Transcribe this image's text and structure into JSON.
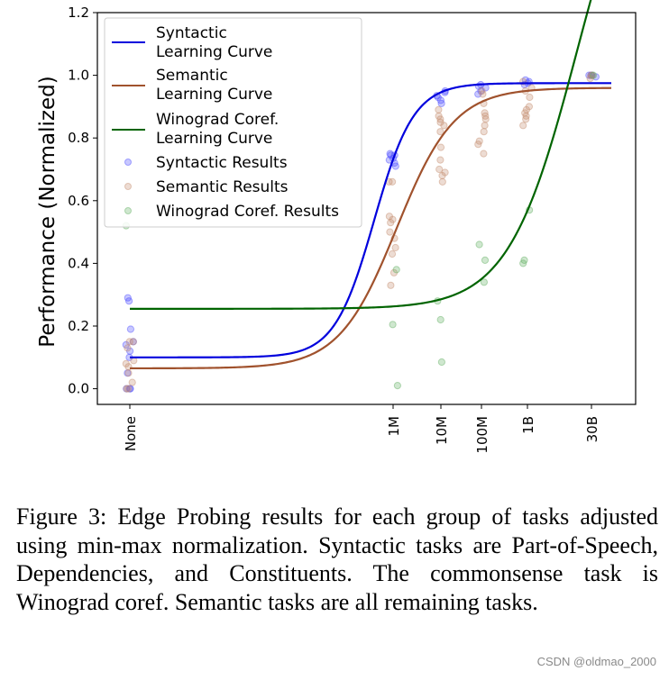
{
  "chart_data": {
    "type": "scatter",
    "ylabel": "Performance (Normalized)",
    "xlabel": "",
    "ylim": [
      -0.05,
      1.2
    ],
    "yticks": [
      0.0,
      0.2,
      0.4,
      0.6,
      0.8,
      1.0,
      1.2
    ],
    "categories": [
      "None",
      "1M",
      "10M",
      "100M",
      "1B",
      "30B"
    ],
    "legend_position": "top-left",
    "grid": false,
    "series": [
      {
        "name": "Syntactic Learning Curve",
        "kind": "line",
        "color": "#0000dd",
        "x": [
          "None",
          "1M",
          "10M",
          "100M",
          "1B",
          "30B"
        ],
        "y": [
          0.1,
          0.62,
          0.91,
          0.965,
          0.975,
          0.975
        ]
      },
      {
        "name": "Semantic Learning Curve",
        "kind": "line",
        "color": "#a0522d",
        "x": [
          "None",
          "1M",
          "10M",
          "100M",
          "1B",
          "30B"
        ],
        "y": [
          0.065,
          0.48,
          0.76,
          0.89,
          0.935,
          0.96
        ]
      },
      {
        "name": "Winograd Coref. Learning Curve",
        "kind": "line",
        "color": "#006400",
        "x": [
          "None",
          "1M",
          "10M",
          "100M",
          "1B",
          "30B"
        ],
        "y": [
          0.255,
          0.26,
          0.27,
          0.32,
          0.55,
          1.15
        ]
      },
      {
        "name": "Syntactic Results",
        "kind": "scatter",
        "color": "#4a4aff",
        "points": [
          [
            "None",
            0.0
          ],
          [
            "None",
            0.0
          ],
          [
            "None",
            0.0
          ],
          [
            "None",
            0.05
          ],
          [
            "None",
            0.1
          ],
          [
            "None",
            0.12
          ],
          [
            "None",
            0.14
          ],
          [
            "None",
            0.15
          ],
          [
            "None",
            0.19
          ],
          [
            "None",
            0.28
          ],
          [
            "None",
            0.29
          ],
          [
            "1M",
            0.71
          ],
          [
            "1M",
            0.72
          ],
          [
            "1M",
            0.73
          ],
          [
            "1M",
            0.735
          ],
          [
            "1M",
            0.745
          ],
          [
            "1M",
            0.745
          ],
          [
            "1M",
            0.75
          ],
          [
            "10M",
            0.91
          ],
          [
            "10M",
            0.92
          ],
          [
            "10M",
            0.93
          ],
          [
            "10M",
            0.935
          ],
          [
            "10M",
            0.945
          ],
          [
            "10M",
            0.95
          ],
          [
            "100M",
            0.94
          ],
          [
            "100M",
            0.95
          ],
          [
            "100M",
            0.96
          ],
          [
            "100M",
            0.965
          ],
          [
            "100M",
            0.97
          ],
          [
            "1B",
            0.975
          ],
          [
            "1B",
            0.98
          ],
          [
            "1B",
            0.985
          ],
          [
            "1B",
            0.97
          ],
          [
            "30B",
            0.995
          ],
          [
            "30B",
            1.0
          ],
          [
            "30B",
            1.0
          ],
          [
            "30B",
            1.0
          ]
        ]
      },
      {
        "name": "Semantic Results",
        "kind": "scatter",
        "color": "#c48c6c",
        "points": [
          [
            "None",
            0.0
          ],
          [
            "None",
            0.0
          ],
          [
            "None",
            0.02
          ],
          [
            "None",
            0.05
          ],
          [
            "None",
            0.07
          ],
          [
            "None",
            0.08
          ],
          [
            "None",
            0.09
          ],
          [
            "None",
            0.13
          ],
          [
            "None",
            0.15
          ],
          [
            "None",
            0.15
          ],
          [
            "1M",
            0.33
          ],
          [
            "1M",
            0.37
          ],
          [
            "1M",
            0.43
          ],
          [
            "1M",
            0.45
          ],
          [
            "1M",
            0.48
          ],
          [
            "1M",
            0.5
          ],
          [
            "1M",
            0.53
          ],
          [
            "1M",
            0.54
          ],
          [
            "1M",
            0.55
          ],
          [
            "1M",
            0.66
          ],
          [
            "1M",
            0.66
          ],
          [
            "10M",
            0.66
          ],
          [
            "10M",
            0.68
          ],
          [
            "10M",
            0.69
          ],
          [
            "10M",
            0.7
          ],
          [
            "10M",
            0.73
          ],
          [
            "10M",
            0.77
          ],
          [
            "10M",
            0.82
          ],
          [
            "10M",
            0.84
          ],
          [
            "10M",
            0.85
          ],
          [
            "10M",
            0.86
          ],
          [
            "10M",
            0.87
          ],
          [
            "10M",
            0.89
          ],
          [
            "100M",
            0.75
          ],
          [
            "100M",
            0.78
          ],
          [
            "100M",
            0.79
          ],
          [
            "100M",
            0.82
          ],
          [
            "100M",
            0.84
          ],
          [
            "100M",
            0.86
          ],
          [
            "100M",
            0.87
          ],
          [
            "100M",
            0.88
          ],
          [
            "100M",
            0.91
          ],
          [
            "100M",
            0.94
          ],
          [
            "100M",
            0.95
          ],
          [
            "1B",
            0.84
          ],
          [
            "1B",
            0.86
          ],
          [
            "1B",
            0.87
          ],
          [
            "1B",
            0.88
          ],
          [
            "1B",
            0.89
          ],
          [
            "1B",
            0.9
          ],
          [
            "1B",
            0.93
          ],
          [
            "1B",
            0.95
          ],
          [
            "1B",
            0.96
          ],
          [
            "1B",
            0.98
          ],
          [
            "30B",
            0.99
          ],
          [
            "30B",
            1.0
          ],
          [
            "30B",
            1.0
          ]
        ]
      },
      {
        "name": "Winograd Coref. Results",
        "kind": "scatter",
        "color": "#5fae5f",
        "points": [
          [
            "None",
            0.52
          ],
          [
            "1M",
            0.01
          ],
          [
            "1M",
            0.205
          ],
          [
            "1M",
            0.38
          ],
          [
            "10M",
            0.085
          ],
          [
            "10M",
            0.22
          ],
          [
            "10M",
            0.28
          ],
          [
            "100M",
            0.34
          ],
          [
            "100M",
            0.41
          ],
          [
            "100M",
            0.46
          ],
          [
            "1B",
            0.4
          ],
          [
            "1B",
            0.41
          ],
          [
            "1B",
            0.57
          ],
          [
            "30B",
            1.0
          ]
        ]
      }
    ]
  },
  "caption": "Figure 3: Edge Probing results for each group of tasks adjusted using min-max normalization. Syntactic tasks are Part-of-Speech, Dependencies, and Constituents. The commonsense task is Winograd coref.  Semantic tasks are all remaining tasks.",
  "legend": {
    "syntactic_curve": [
      "Syntactic",
      "Learning Curve"
    ],
    "semantic_curve": [
      "Semantic",
      "Learning Curve"
    ],
    "winograd_curve": [
      "Winograd Coref.",
      "Learning Curve"
    ],
    "syntactic_results": "Syntactic Results",
    "semantic_results": "Semantic Results",
    "winograd_results": "Winograd Coref. Results"
  },
  "watermark": "CSDN @oldmao_2000"
}
